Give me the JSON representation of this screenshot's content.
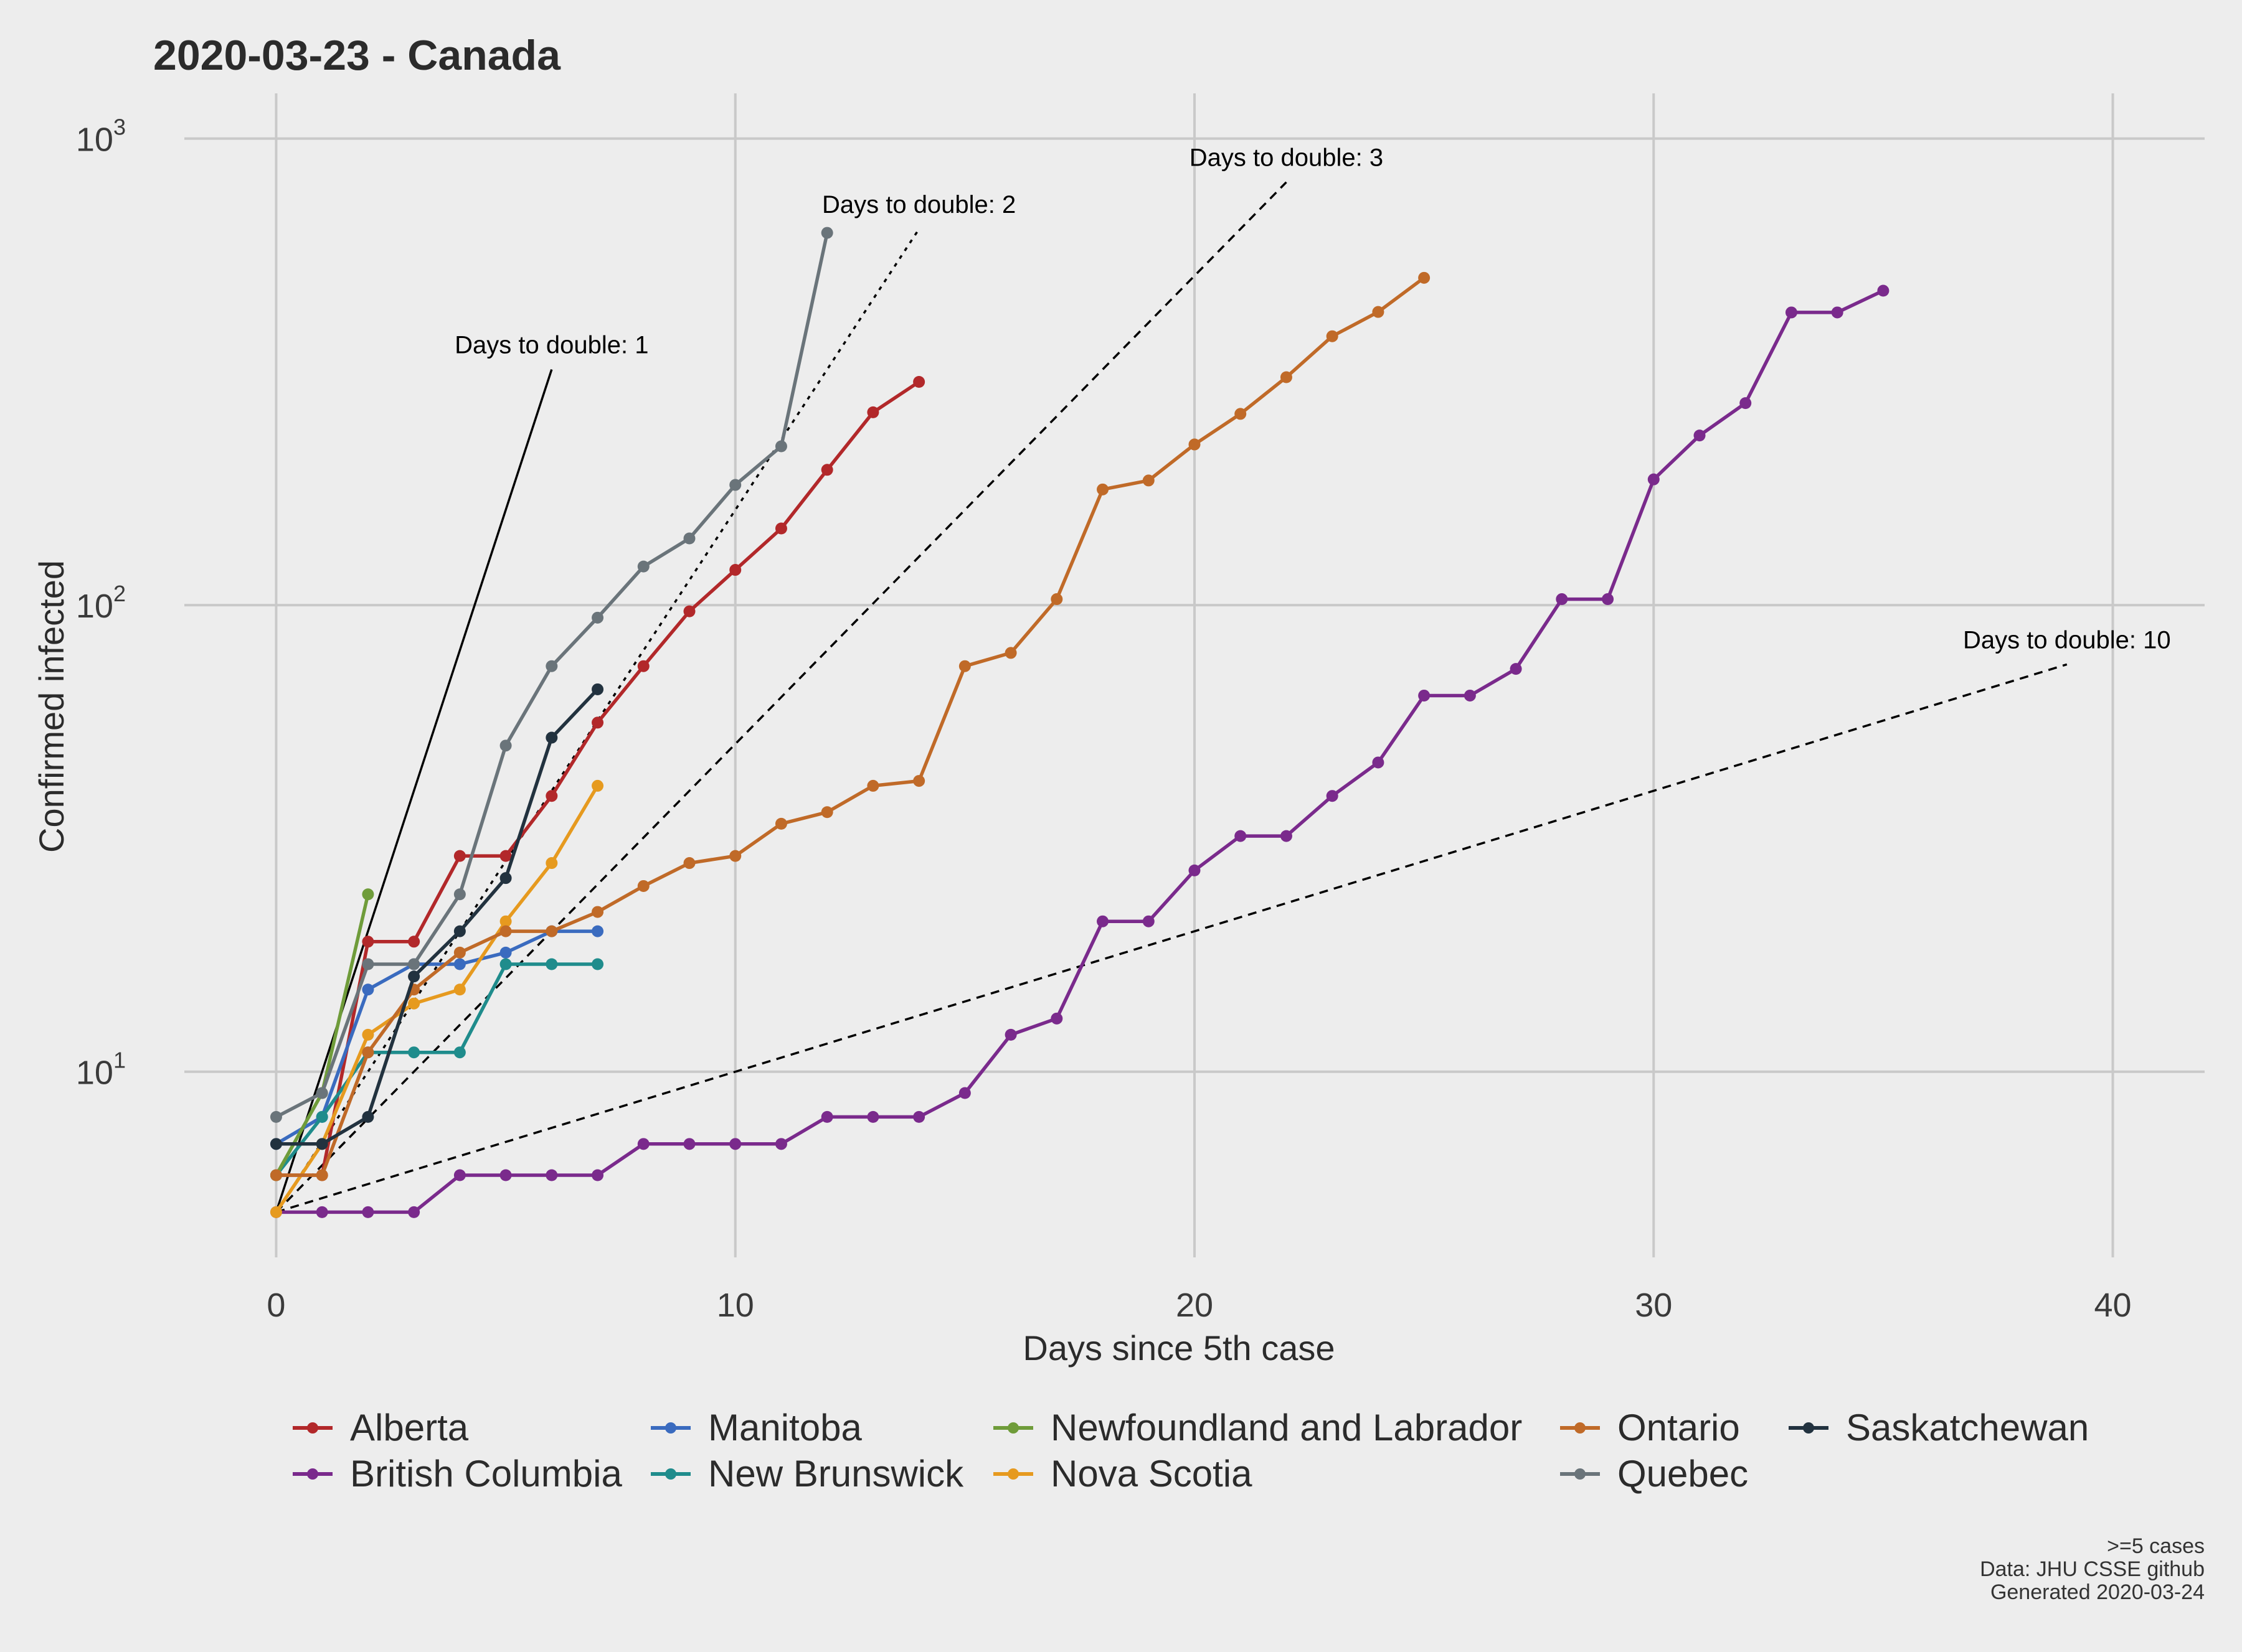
{
  "chart_data": {
    "type": "line",
    "title": "2020-03-23  - Canada",
    "xlabel": "Days since 5th case",
    "ylabel": "Confirmed infected",
    "xlim": [
      -2,
      42
    ],
    "ylim": [
      4,
      1250
    ],
    "yscale": "log",
    "grid": true,
    "legend_position": "bottom",
    "x_ticks": [
      0,
      10,
      20,
      30,
      40
    ],
    "y_ticks": [
      {
        "value": 10,
        "base": "10",
        "exp": "1"
      },
      {
        "value": 100,
        "base": "10",
        "exp": "2"
      },
      {
        "value": 1000,
        "base": "10",
        "exp": "3"
      }
    ],
    "reference_lines": [
      {
        "label": "Days to double: 1",
        "doubling_days": 1,
        "x_end": 6,
        "style": "solid"
      },
      {
        "label": "Days to double: 2",
        "doubling_days": 2,
        "x_end": 14,
        "style": "dotted"
      },
      {
        "label": "Days to double: 3",
        "doubling_days": 3,
        "x_end": 22,
        "style": "dashed"
      },
      {
        "label": "Days to double: 10",
        "doubling_days": 10,
        "x_end": 39,
        "style": "dashed"
      }
    ],
    "series": [
      {
        "name": "Alberta",
        "color": "#b2282a",
        "values": [
          6,
          6,
          19,
          19,
          29,
          29,
          39,
          56,
          74,
          97,
          119,
          146,
          195,
          259,
          301
        ]
      },
      {
        "name": "British Columbia",
        "color": "#7a2a8c",
        "values": [
          5,
          5,
          5,
          5,
          6,
          6,
          6,
          6,
          7,
          7,
          7,
          7,
          8,
          8,
          8,
          9,
          12,
          13,
          21,
          21,
          27,
          32,
          32,
          39,
          46,
          64,
          64,
          73,
          103,
          103,
          186,
          231,
          271,
          424,
          424,
          472
        ]
      },
      {
        "name": "Manitoba",
        "color": "#3a6bbf",
        "values": [
          7,
          8,
          15,
          17,
          17,
          18,
          20,
          20
        ]
      },
      {
        "name": "New Brunswick",
        "color": "#1f8c8c",
        "values": [
          6,
          8,
          11,
          11,
          11,
          17,
          17,
          17
        ]
      },
      {
        "name": "Newfoundland and Labrador",
        "color": "#6f9c3a",
        "values": [
          6,
          9,
          24
        ]
      },
      {
        "name": "Nova Scotia",
        "color": "#e69a1f",
        "values": [
          5,
          7,
          12,
          14,
          15,
          21,
          28,
          41
        ]
      },
      {
        "name": "Ontario",
        "color": "#c06a28",
        "values": [
          6,
          6,
          11,
          15,
          18,
          20,
          20,
          22,
          25,
          28,
          29,
          34,
          36,
          41,
          42,
          74,
          79,
          103,
          177,
          185,
          221,
          257,
          308,
          377,
          425,
          503
        ]
      },
      {
        "name": "Quebec",
        "color": "#6a747a",
        "values": [
          8,
          9,
          17,
          17,
          24,
          50,
          74,
          94,
          121,
          139,
          181,
          219,
          628
        ]
      },
      {
        "name": "Saskatchewan",
        "color": "#22323f",
        "values": [
          7,
          7,
          8,
          16,
          20,
          26,
          52,
          66
        ]
      }
    ],
    "caption": [
      ">=5 cases",
      "Data: JHU CSSE github",
      "Generated 2020-03-24"
    ]
  }
}
